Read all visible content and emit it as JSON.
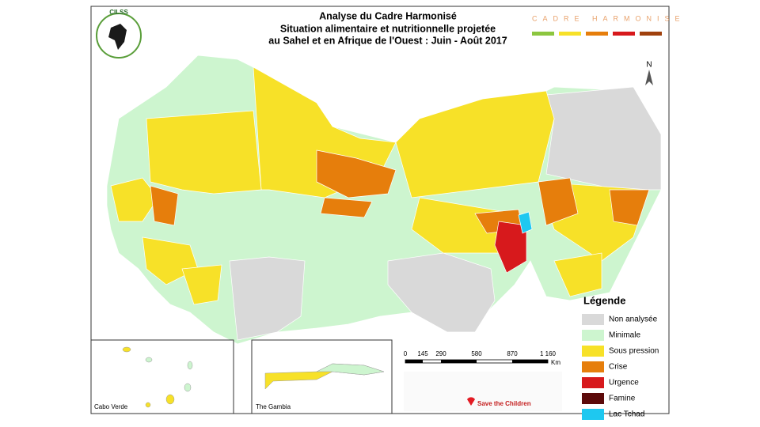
{
  "header": {
    "title": "Analyse du Cadre Harmonisé",
    "subtitle_1": "Situation alimentaire et nutritionnelle projetée",
    "subtitle_2": "au Sahel et en Afrique de l'Ouest : Juin - Août 2017",
    "logo": "CILSS",
    "banner": "CADRE HARMONISE",
    "north": "N"
  },
  "legend": {
    "title": "Légende",
    "items": [
      {
        "label": "Non analysée",
        "color": "#d9d9d9"
      },
      {
        "label": "Minimale",
        "color": "#cdf5cf"
      },
      {
        "label": "Sous pression",
        "color": "#f7e128"
      },
      {
        "label": "Crise",
        "color": "#e67e0c"
      },
      {
        "label": "Urgence",
        "color": "#d7191c"
      },
      {
        "label": "Famine",
        "color": "#5c0a0a"
      },
      {
        "label": "Lac Tchad",
        "color": "#1ec8f0"
      }
    ]
  },
  "scale": {
    "labels": [
      "0",
      "145",
      "290",
      "580",
      "870",
      "1 160"
    ],
    "unit": "Km"
  },
  "insets": [
    "Cabo Verde",
    "The Gambia"
  ],
  "partners": [
    "Save the Children"
  ]
}
